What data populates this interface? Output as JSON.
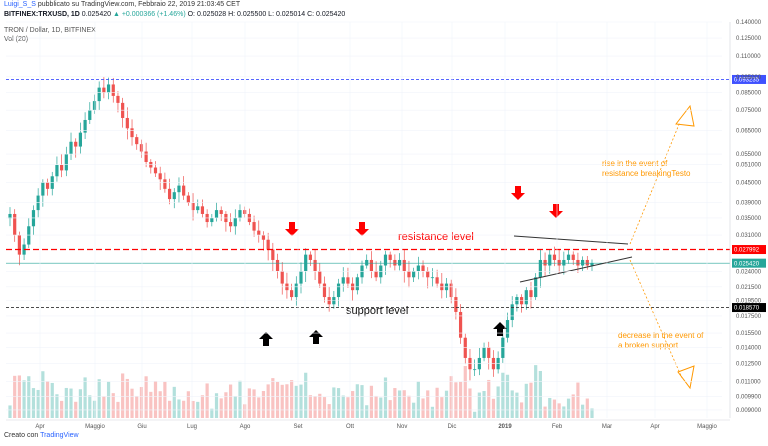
{
  "header": {
    "user": "Luigi_S_S",
    "published": "pubblicato su TradingView.com, Febbraio 22, 2019 21:03:45 CET",
    "ticker": "BITFINEX:TRXUSD, 1D",
    "last": "0.025420",
    "change": "▲ +0.000366 (+1.46%)",
    "ohlc": "O: 0.025028 H: 0.025500 L: 0.025014 C: 0.025420"
  },
  "legend": {
    "symbol": "TRON / Dollar, 1D, BITFINEX",
    "volume": "Vol (20)"
  },
  "footer": {
    "prefix": "Creato con",
    "brand": "TradingView"
  },
  "colors": {
    "up": "#26a69a",
    "down": "#ef5350",
    "resistance": "#ff0000",
    "orange": "#ff9800",
    "blue_line": "#3f51ff",
    "support": "#333333"
  },
  "chart_data": {
    "type": "candlestick",
    "x_labels": [
      "Apr",
      "Maggio",
      "Giu",
      "Lug",
      "Ago",
      "Set",
      "Ott",
      "Nov",
      "Dic",
      "2019",
      "Feb",
      "Mar",
      "Apr",
      "Maggio"
    ],
    "y_ticks": [
      "0.140000",
      "0.125000",
      "0.110000",
      "0.095000",
      "0.085000",
      "0.075000",
      "0.065000",
      "0.055000",
      "0.051000",
      "0.045000",
      "0.039000",
      "0.035000",
      "0.031000",
      "0.024000",
      "0.021500",
      "0.019500",
      "0.017500",
      "0.015500",
      "0.014000",
      "0.012500",
      "0.011000",
      "0.009900",
      "0.009000"
    ],
    "price_labels": [
      {
        "value": "0.093235",
        "color": "#3f51ff"
      },
      {
        "value": "0.027992",
        "color": "#ff0000"
      },
      {
        "value": "0.025420",
        "color": "#26a69a"
      },
      {
        "value": "0.018570",
        "color": "#000000"
      }
    ],
    "closes": [
      0.036,
      0.031,
      0.027,
      0.029,
      0.033,
      0.037,
      0.041,
      0.045,
      0.043,
      0.047,
      0.051,
      0.049,
      0.055,
      0.06,
      0.058,
      0.064,
      0.07,
      0.075,
      0.08,
      0.088,
      0.085,
      0.09,
      0.083,
      0.079,
      0.071,
      0.066,
      0.062,
      0.059,
      0.056,
      0.052,
      0.05,
      0.048,
      0.046,
      0.043,
      0.04,
      0.042,
      0.044,
      0.041,
      0.039,
      0.037,
      0.038,
      0.036,
      0.034,
      0.035,
      0.037,
      0.036,
      0.034,
      0.033,
      0.035,
      0.037,
      0.036,
      0.034,
      0.032,
      0.031,
      0.03,
      0.028,
      0.026,
      0.024,
      0.022,
      0.021,
      0.02,
      0.022,
      0.024,
      0.027,
      0.026,
      0.024,
      0.022,
      0.02,
      0.019,
      0.02,
      0.022,
      0.023,
      0.022,
      0.021,
      0.023,
      0.025,
      0.026,
      0.024,
      0.023,
      0.025,
      0.027,
      0.026,
      0.025,
      0.026,
      0.024,
      0.023,
      0.024,
      0.025,
      0.024,
      0.023,
      0.023,
      0.022,
      0.021,
      0.022,
      0.02,
      0.018,
      0.015,
      0.013,
      0.012,
      0.012,
      0.013,
      0.014,
      0.013,
      0.012,
      0.013,
      0.015,
      0.017,
      0.019,
      0.02,
      0.019,
      0.021,
      0.02,
      0.023,
      0.026,
      0.025,
      0.027,
      0.026,
      0.025,
      0.026,
      0.027,
      0.026,
      0.025,
      0.026,
      0.025,
      0.0254
    ],
    "resistance_level": 0.027992,
    "support_level": 0.01857,
    "high_line": 0.093235,
    "annotations": {
      "resistance": "resistance level",
      "support": "support level",
      "rise": "rise in the event of resistance breakingTesto",
      "decrease": "decrease in the event of a broken support"
    }
  }
}
